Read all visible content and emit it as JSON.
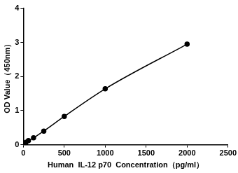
{
  "chart_data": {
    "type": "line",
    "x_label": "Human  IL-12 p70  Concentration（pg/ml）",
    "y_label": "OD Value（450nm）",
    "x": [
      0,
      31.25,
      62.5,
      125,
      250,
      500,
      1000,
      2000
    ],
    "values": [
      0.02,
      0.07,
      0.12,
      0.2,
      0.4,
      0.83,
      1.64,
      2.95
    ],
    "color": "#000000",
    "marker": "circle",
    "xlim": [
      0,
      2500
    ],
    "xticks": [
      0,
      500,
      1000,
      1500,
      2000,
      2500
    ],
    "ylim": [
      0,
      4
    ],
    "yticks": [
      0,
      1,
      2,
      3,
      4
    ],
    "grid": false
  }
}
